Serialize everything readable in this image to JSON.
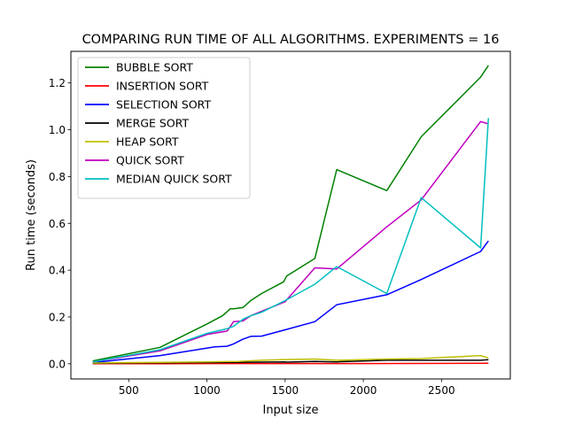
{
  "chart_data": {
    "type": "line",
    "title": "COMPARING RUN TIME OF ALL ALGORITHMS.  EXPERIMENTS = 16",
    "xlabel": "Input size",
    "ylabel": "Run time (seconds)",
    "xlim": [
      130,
      2940
    ],
    "ylim": [
      -0.065,
      1.335
    ],
    "xticks": [
      500,
      1000,
      1500,
      2000,
      2500
    ],
    "yticks": [
      0.0,
      0.2,
      0.4,
      0.6,
      0.8,
      1.0,
      1.2
    ],
    "xtick_labels": [
      "500",
      "1000",
      "1500",
      "2000",
      "2500"
    ],
    "ytick_labels": [
      "0.0",
      "0.2",
      "0.4",
      "0.6",
      "0.8",
      "1.0",
      "1.2"
    ],
    "grid": false,
    "legend_position": "top-left",
    "series": [
      {
        "name": "BUBBLE SORT",
        "color": "#008000",
        "x": [
          270,
          700,
          1000,
          1100,
          1150,
          1170,
          1230,
          1280,
          1350,
          1490,
          1510,
          1690,
          1830,
          2150,
          2370,
          2750,
          2800
        ],
        "y": [
          0.012,
          0.07,
          0.17,
          0.205,
          0.235,
          0.235,
          0.24,
          0.27,
          0.3,
          0.35,
          0.375,
          0.45,
          0.83,
          0.74,
          0.97,
          1.225,
          1.275
        ]
      },
      {
        "name": "INSERTION SORT",
        "color": "#ff0000",
        "x": [
          270,
          700,
          1000,
          1500,
          2000,
          2800
        ],
        "y": [
          0.0,
          0.0,
          0.001,
          0.001,
          0.001,
          0.002
        ]
      },
      {
        "name": "SELECTION SORT",
        "color": "#0000ff",
        "x": [
          270,
          700,
          1050,
          1130,
          1170,
          1230,
          1280,
          1350,
          1500,
          1690,
          1830,
          2150,
          2370,
          2750,
          2800
        ],
        "y": [
          0.005,
          0.035,
          0.072,
          0.075,
          0.085,
          0.105,
          0.117,
          0.118,
          0.145,
          0.18,
          0.252,
          0.295,
          0.36,
          0.48,
          0.525
        ]
      },
      {
        "name": "MERGE SORT",
        "color": "#000000",
        "x": [
          270,
          700,
          1000,
          1200,
          1500,
          1510,
          1690,
          1830,
          2150,
          2370,
          2750,
          2800
        ],
        "y": [
          0.002,
          0.004,
          0.005,
          0.006,
          0.008,
          0.007,
          0.01,
          0.008,
          0.015,
          0.015,
          0.015,
          0.017
        ]
      },
      {
        "name": "HEAP SORT",
        "color": "#bfbf00",
        "x": [
          270,
          700,
          1000,
          1200,
          1350,
          1500,
          1690,
          1830,
          2150,
          2370,
          2750,
          2800
        ],
        "y": [
          0.003,
          0.006,
          0.008,
          0.01,
          0.015,
          0.018,
          0.02,
          0.015,
          0.02,
          0.022,
          0.035,
          0.025
        ]
      },
      {
        "name": "QUICK SORT",
        "color": "#bf00bf",
        "x": [
          270,
          700,
          1000,
          1130,
          1170,
          1230,
          1280,
          1500,
          1690,
          1830,
          2150,
          2370,
          2750,
          2800
        ],
        "y": [
          0.008,
          0.055,
          0.125,
          0.14,
          0.18,
          0.183,
          0.205,
          0.265,
          0.41,
          0.405,
          0.585,
          0.7,
          1.035,
          1.025
        ]
      },
      {
        "name": "MEDIAN QUICK SORT",
        "color": "#00bfbf",
        "x": [
          270,
          700,
          1000,
          1130,
          1170,
          1230,
          1280,
          1350,
          1500,
          1690,
          1830,
          2150,
          2370,
          2750,
          2800
        ],
        "y": [
          0.008,
          0.06,
          0.13,
          0.15,
          0.16,
          0.19,
          0.205,
          0.22,
          0.27,
          0.34,
          0.415,
          0.3,
          0.71,
          0.495,
          1.05
        ]
      }
    ]
  }
}
